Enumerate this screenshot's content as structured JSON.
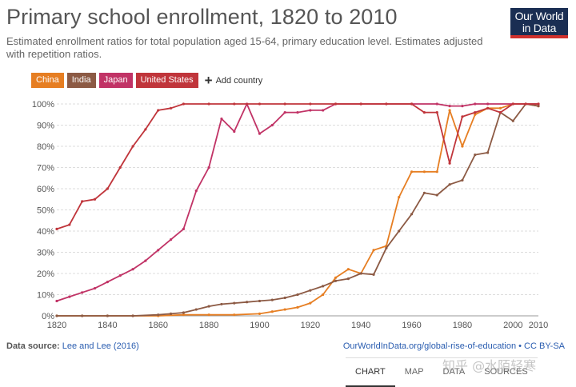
{
  "header": {
    "title": "Primary school enrollment, 1820 to 2010",
    "subtitle": "Estimated enrollment ratios for total population aged 15-64, primary education level. Estimates adjusted with repetition ratios.",
    "logo_line1": "Our World",
    "logo_line2": "in Data",
    "logo_colors": {
      "background": "#1a2e53",
      "accent": "#d0312d"
    }
  },
  "legend": {
    "add_label": "Add country",
    "add_icon": "plus-icon"
  },
  "chart_data": {
    "type": "line",
    "xlim": [
      1820,
      2010
    ],
    "ylim": [
      0,
      100
    ],
    "x_ticks": [
      1820,
      1840,
      1860,
      1880,
      1900,
      1920,
      1940,
      1960,
      1980,
      2000,
      2010
    ],
    "x_tick_labels": [
      "1820",
      "1840",
      "1860",
      "1880",
      "1900",
      "1920",
      "1940",
      "1960",
      "1980",
      "2000",
      "2010"
    ],
    "y_ticks": [
      0,
      10,
      20,
      30,
      40,
      50,
      60,
      70,
      80,
      90,
      100
    ],
    "y_tick_labels": [
      "0%",
      "10%",
      "20%",
      "30%",
      "40%",
      "50%",
      "60%",
      "70%",
      "80%",
      "90%",
      "100%"
    ],
    "grid": true,
    "legend_position": "top-left",
    "series": [
      {
        "name": "China",
        "color": "#e67e22",
        "points": [
          [
            1820,
            0
          ],
          [
            1830,
            0
          ],
          [
            1840,
            0
          ],
          [
            1850,
            0
          ],
          [
            1860,
            0
          ],
          [
            1870,
            0.5
          ],
          [
            1880,
            0.5
          ],
          [
            1890,
            0.5
          ],
          [
            1900,
            1
          ],
          [
            1905,
            2
          ],
          [
            1910,
            3
          ],
          [
            1915,
            4
          ],
          [
            1920,
            6
          ],
          [
            1925,
            10
          ],
          [
            1930,
            18
          ],
          [
            1935,
            22
          ],
          [
            1940,
            20
          ],
          [
            1945,
            31
          ],
          [
            1950,
            33
          ],
          [
            1955,
            56
          ],
          [
            1960,
            68
          ],
          [
            1965,
            68
          ],
          [
            1970,
            68
          ],
          [
            1975,
            97
          ],
          [
            1980,
            80
          ],
          [
            1985,
            95
          ],
          [
            1990,
            98
          ],
          [
            1995,
            98
          ],
          [
            2000,
            100
          ],
          [
            2005,
            100
          ],
          [
            2010,
            99
          ]
        ]
      },
      {
        "name": "India",
        "color": "#8c5a44",
        "points": [
          [
            1820,
            0
          ],
          [
            1830,
            0
          ],
          [
            1840,
            0
          ],
          [
            1850,
            0
          ],
          [
            1860,
            0.5
          ],
          [
            1865,
            1
          ],
          [
            1870,
            1.5
          ],
          [
            1875,
            3
          ],
          [
            1880,
            4.5
          ],
          [
            1885,
            5.5
          ],
          [
            1890,
            6
          ],
          [
            1895,
            6.5
          ],
          [
            1900,
            7
          ],
          [
            1905,
            7.5
          ],
          [
            1910,
            8.5
          ],
          [
            1915,
            10
          ],
          [
            1920,
            12
          ],
          [
            1925,
            14
          ],
          [
            1930,
            16.5
          ],
          [
            1935,
            17.5
          ],
          [
            1940,
            20
          ],
          [
            1945,
            19.5
          ],
          [
            1950,
            32
          ],
          [
            1955,
            40
          ],
          [
            1960,
            48
          ],
          [
            1965,
            58
          ],
          [
            1970,
            57
          ],
          [
            1975,
            62
          ],
          [
            1980,
            64
          ],
          [
            1985,
            76
          ],
          [
            1990,
            77
          ],
          [
            1995,
            96
          ],
          [
            2000,
            92
          ],
          [
            2005,
            100
          ],
          [
            2010,
            99
          ]
        ]
      },
      {
        "name": "Japan",
        "color": "#c13366",
        "points": [
          [
            1820,
            7
          ],
          [
            1825,
            9
          ],
          [
            1830,
            11
          ],
          [
            1835,
            13
          ],
          [
            1840,
            16
          ],
          [
            1845,
            19
          ],
          [
            1850,
            22
          ],
          [
            1855,
            26
          ],
          [
            1860,
            31
          ],
          [
            1865,
            36
          ],
          [
            1870,
            41
          ],
          [
            1875,
            59
          ],
          [
            1880,
            70
          ],
          [
            1885,
            93
          ],
          [
            1890,
            87
          ],
          [
            1895,
            100
          ],
          [
            1900,
            86
          ],
          [
            1905,
            90
          ],
          [
            1910,
            96
          ],
          [
            1915,
            96
          ],
          [
            1920,
            97
          ],
          [
            1925,
            97
          ],
          [
            1930,
            100
          ],
          [
            1940,
            100
          ],
          [
            1950,
            100
          ],
          [
            1960,
            100
          ],
          [
            1970,
            100
          ],
          [
            1975,
            99
          ],
          [
            1980,
            99
          ],
          [
            1985,
            100
          ],
          [
            1990,
            100
          ],
          [
            2000,
            100
          ],
          [
            2010,
            100
          ]
        ]
      },
      {
        "name": "United States",
        "color": "#c0353b",
        "points": [
          [
            1820,
            41
          ],
          [
            1825,
            43
          ],
          [
            1830,
            54
          ],
          [
            1835,
            55
          ],
          [
            1840,
            60
          ],
          [
            1845,
            70
          ],
          [
            1850,
            80
          ],
          [
            1855,
            88
          ],
          [
            1860,
            97
          ],
          [
            1865,
            98
          ],
          [
            1870,
            100
          ],
          [
            1880,
            100
          ],
          [
            1890,
            100
          ],
          [
            1900,
            100
          ],
          [
            1910,
            100
          ],
          [
            1920,
            100
          ],
          [
            1930,
            100
          ],
          [
            1940,
            100
          ],
          [
            1950,
            100
          ],
          [
            1960,
            100
          ],
          [
            1965,
            96
          ],
          [
            1970,
            96
          ],
          [
            1975,
            72
          ],
          [
            1980,
            94
          ],
          [
            1985,
            96
          ],
          [
            1990,
            98
          ],
          [
            1995,
            96
          ],
          [
            2000,
            100
          ],
          [
            2005,
            100
          ],
          [
            2010,
            100
          ]
        ]
      }
    ]
  },
  "footer": {
    "source_label": "Data source:",
    "source_text": "Lee and Lee (2016)",
    "url_text": "OurWorldInData.org/global-rise-of-education • CC BY-SA"
  },
  "tabs": [
    "CHART",
    "MAP",
    "DATA",
    "SOURCES"
  ],
  "watermark": "知乎 @水陌轻寒"
}
